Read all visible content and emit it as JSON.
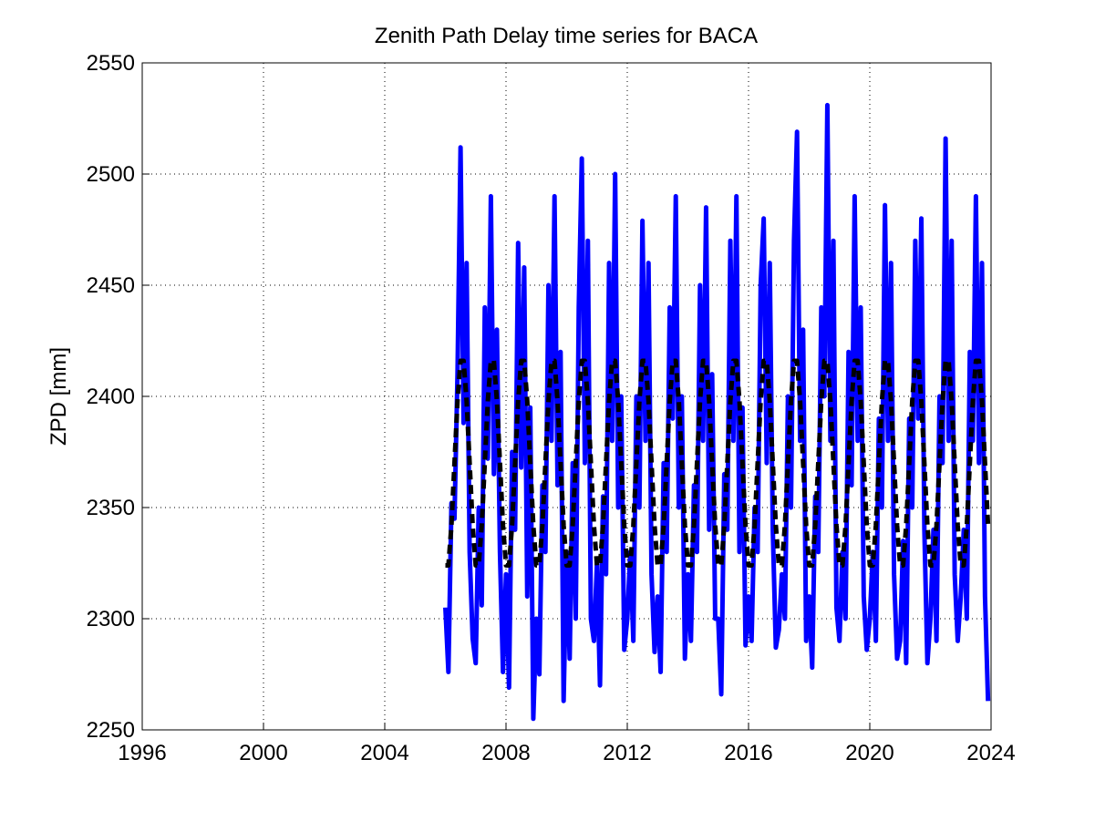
{
  "chart_data": {
    "type": "line",
    "title": "Zenith Path Delay time series for BACA",
    "y_label": "ZPD [mm]",
    "xlim": [
      1996,
      2024
    ],
    "xticks": [
      1996,
      2000,
      2004,
      2008,
      2012,
      2016,
      2020,
      2024
    ],
    "ylim": [
      2250,
      2550
    ],
    "yticks": [
      2250,
      2300,
      2350,
      2400,
      2450,
      2500,
      2550
    ],
    "grid": true,
    "x": [
      2006,
      2006.1,
      2006.2,
      2006.3,
      2006.4,
      2006.5,
      2006.6,
      2006.7,
      2006.8,
      2006.9,
      2007,
      2007.1,
      2007.2,
      2007.3,
      2007.4,
      2007.5,
      2007.6,
      2007.7,
      2007.8,
      2007.9,
      2008,
      2008.1,
      2008.2,
      2008.3,
      2008.4,
      2008.5,
      2008.6,
      2008.7,
      2008.8,
      2008.9,
      2009,
      2009.1,
      2009.2,
      2009.3,
      2009.4,
      2009.5,
      2009.6,
      2009.7,
      2009.8,
      2009.9,
      2010,
      2010.1,
      2010.2,
      2010.3,
      2010.4,
      2010.5,
      2010.6,
      2010.7,
      2010.8,
      2010.9,
      2011,
      2011.1,
      2011.2,
      2011.3,
      2011.4,
      2011.5,
      2011.6,
      2011.7,
      2011.8,
      2011.9,
      2012,
      2012.1,
      2012.2,
      2012.3,
      2012.4,
      2012.5,
      2012.6,
      2012.7,
      2012.8,
      2012.9,
      2013,
      2013.1,
      2013.2,
      2013.3,
      2013.4,
      2013.5,
      2013.6,
      2013.7,
      2013.8,
      2013.9,
      2014,
      2014.1,
      2014.2,
      2014.3,
      2014.4,
      2014.5,
      2014.6,
      2014.7,
      2014.8,
      2014.9,
      2015,
      2015.1,
      2015.2,
      2015.3,
      2015.4,
      2015.5,
      2015.6,
      2015.7,
      2015.8,
      2015.9,
      2016,
      2016.1,
      2016.2,
      2016.3,
      2016.4,
      2016.5,
      2016.6,
      2016.7,
      2016.8,
      2016.9,
      2017,
      2017.1,
      2017.2,
      2017.3,
      2017.4,
      2017.5,
      2017.6,
      2017.7,
      2017.8,
      2017.9,
      2018,
      2018.1,
      2018.2,
      2018.3,
      2018.4,
      2018.5,
      2018.6,
      2018.7,
      2018.8,
      2018.9,
      2019,
      2019.1,
      2019.2,
      2019.3,
      2019.4,
      2019.5,
      2019.6,
      2019.7,
      2019.8,
      2019.9,
      2020,
      2020.1,
      2020.2,
      2020.3,
      2020.4,
      2020.5,
      2020.6,
      2020.7,
      2020.8,
      2020.9,
      2021,
      2021.1,
      2021.2,
      2021.3,
      2021.4,
      2021.5,
      2021.6,
      2021.7,
      2021.8,
      2021.9,
      2022,
      2022.1,
      2022.2,
      2022.3,
      2022.4,
      2022.5,
      2022.6,
      2022.7,
      2022.8,
      2022.9,
      2023,
      2023.1,
      2023.2,
      2023.3,
      2023.4,
      2023.5,
      2023.6,
      2023.7,
      2023.8,
      2023.9
    ],
    "series": [
      {
        "color": "#0000ff",
        "dash": false,
        "width": 5,
        "values": [
          2305,
          2276,
          2352,
          2345,
          2410,
          2512,
          2388,
          2460,
          2330,
          2291,
          2280,
          2350,
          2306,
          2440,
          2372,
          2490,
          2365,
          2430,
          2330,
          2276,
          2320,
          2269,
          2375,
          2340,
          2469,
          2368,
          2458,
          2310,
          2395,
          2255,
          2300,
          2275,
          2360,
          2330,
          2450,
          2380,
          2490,
          2360,
          2420,
          2263,
          2330,
          2282,
          2370,
          2300,
          2440,
          2507,
          2370,
          2470,
          2300,
          2290,
          2325,
          2270,
          2355,
          2320,
          2460,
          2380,
          2500,
          2350,
          2400,
          2286,
          2300,
          2330,
          2290,
          2400,
          2350,
          2479,
          2380,
          2460,
          2320,
          2285,
          2310,
          2276,
          2370,
          2330,
          2440,
          2390,
          2490,
          2350,
          2400,
          2282,
          2320,
          2290,
          2360,
          2330,
          2450,
          2380,
          2485,
          2340,
          2410,
          2300,
          2300,
          2266,
          2365,
          2340,
          2470,
          2380,
          2490,
          2330,
          2395,
          2288,
          2310,
          2290,
          2350,
          2330,
          2450,
          2480,
          2370,
          2460,
          2340,
          2287,
          2295,
          2320,
          2300,
          2400,
          2350,
          2470,
          2519,
          2380,
          2430,
          2290,
          2310,
          2278,
          2355,
          2330,
          2440,
          2400,
          2531,
          2380,
          2470,
          2305,
          2290,
          2330,
          2300,
          2420,
          2360,
          2490,
          2380,
          2440,
          2310,
          2286,
          2300,
          2330,
          2290,
          2390,
          2350,
          2486,
          2380,
          2460,
          2320,
          2282,
          2290,
          2335,
          2280,
          2390,
          2350,
          2470,
          2390,
          2480,
          2340,
          2280,
          2300,
          2340,
          2290,
          2400,
          2370,
          2516,
          2380,
          2470,
          2320,
          2290,
          2310,
          2340,
          2300,
          2420,
          2380,
          2490,
          2370,
          2460,
          2310,
          2263
        ]
      },
      {
        "color": "#000000",
        "dash": true,
        "width": 5,
        "values": [
          2324,
          2324,
          2342,
          2370,
          2398,
          2416,
          2416,
          2398,
          2370,
          2342,
          2324,
          2324,
          2342,
          2370,
          2398,
          2416,
          2416,
          2398,
          2370,
          2342,
          2324,
          2324,
          2342,
          2370,
          2398,
          2416,
          2416,
          2398,
          2370,
          2342,
          2324,
          2324,
          2342,
          2370,
          2398,
          2416,
          2416,
          2398,
          2370,
          2342,
          2324,
          2324,
          2342,
          2370,
          2398,
          2416,
          2416,
          2398,
          2370,
          2342,
          2324,
          2324,
          2342,
          2370,
          2398,
          2416,
          2416,
          2398,
          2370,
          2342,
          2324,
          2324,
          2342,
          2370,
          2398,
          2416,
          2416,
          2398,
          2370,
          2342,
          2324,
          2324,
          2342,
          2370,
          2398,
          2416,
          2416,
          2398,
          2370,
          2342,
          2324,
          2324,
          2342,
          2370,
          2398,
          2416,
          2416,
          2398,
          2370,
          2342,
          2324,
          2324,
          2342,
          2370,
          2398,
          2416,
          2416,
          2398,
          2370,
          2342,
          2324,
          2324,
          2342,
          2370,
          2398,
          2416,
          2416,
          2398,
          2370,
          2342,
          2324,
          2324,
          2342,
          2370,
          2398,
          2416,
          2416,
          2398,
          2370,
          2342,
          2324,
          2324,
          2342,
          2370,
          2398,
          2416,
          2416,
          2398,
          2370,
          2342,
          2324,
          2324,
          2342,
          2370,
          2398,
          2416,
          2416,
          2398,
          2370,
          2342,
          2324,
          2324,
          2342,
          2370,
          2398,
          2416,
          2416,
          2398,
          2370,
          2342,
          2324,
          2324,
          2342,
          2370,
          2398,
          2416,
          2416,
          2398,
          2370,
          2342,
          2324,
          2324,
          2342,
          2370,
          2398,
          2416,
          2416,
          2398,
          2370,
          2342,
          2324,
          2324,
          2342,
          2370,
          2398,
          2416,
          2416,
          2398,
          2370,
          2342
        ]
      }
    ]
  }
}
